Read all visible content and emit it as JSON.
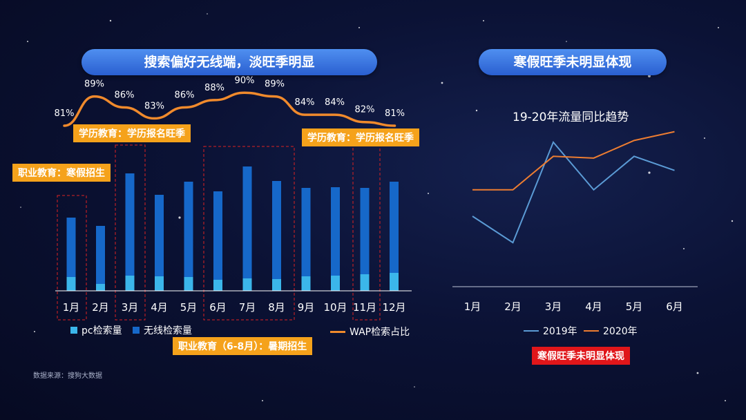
{
  "left": {
    "title": "搜索偏好无线端，淡旺季明显",
    "tags": {
      "edu_top": "学历教育：学历报名旺季",
      "edu_right": "学历教育：学历报名旺季",
      "vocational_winter": "职业教育：寒假招生",
      "vocational_summer": "职业教育（6-8月）：暑期招生"
    },
    "legend": {
      "pc": "pc检索量",
      "wireless": "无线检索量",
      "wap": "WAP检索占比"
    },
    "source": "数据来源：搜狗大数据"
  },
  "right": {
    "title": "寒假旺季未明显体现",
    "chart_title": "19-20年流量同比趋势",
    "badge": "寒假旺季未明显体现",
    "legend": {
      "y2019": "2019年",
      "y2020": "2020年"
    }
  },
  "colors": {
    "pc": "#3bb6ea",
    "wireless": "#1668c9",
    "wap": "#f08a2c",
    "y2019": "#5b9bd5",
    "y2020": "#ed7d31"
  },
  "chart_data": [
    {
      "type": "bar",
      "categories": [
        "1月",
        "2月",
        "3月",
        "4月",
        "5月",
        "6月",
        "7月",
        "8月",
        "9月",
        "10月",
        "11月",
        "12月"
      ],
      "series": [
        {
          "name": "pc检索量",
          "values": [
            20,
            10,
            22,
            21,
            20,
            16,
            18,
            17,
            21,
            22,
            24,
            26
          ]
        },
        {
          "name": "无线检索量",
          "values": [
            86,
            84,
            148,
            118,
            138,
            128,
            162,
            142,
            128,
            128,
            125,
            132
          ]
        },
        {
          "name": "WAP检索占比",
          "type": "line",
          "values": [
            81,
            89,
            86,
            83,
            86,
            88,
            90,
            89,
            84,
            84,
            82,
            81
          ],
          "labels": [
            "81%",
            "89%",
            "86%",
            "83%",
            "86%",
            "88%",
            "90%",
            "89%",
            "84%",
            "84%",
            "82%",
            "81%"
          ]
        }
      ],
      "highlight_months": [
        "1月",
        "3月",
        "6月",
        "7月",
        "8月",
        "11月"
      ]
    },
    {
      "type": "line",
      "title": "19-20年流量同比趋势",
      "categories": [
        "1月",
        "2月",
        "3月",
        "4月",
        "5月",
        "6月"
      ],
      "series": [
        {
          "name": "2019年",
          "values": [
            40,
            25,
            82,
            55,
            74,
            66
          ]
        },
        {
          "name": "2020年",
          "values": [
            55,
            55,
            74,
            73,
            83,
            88
          ]
        }
      ],
      "ylim": [
        0,
        100
      ]
    }
  ]
}
